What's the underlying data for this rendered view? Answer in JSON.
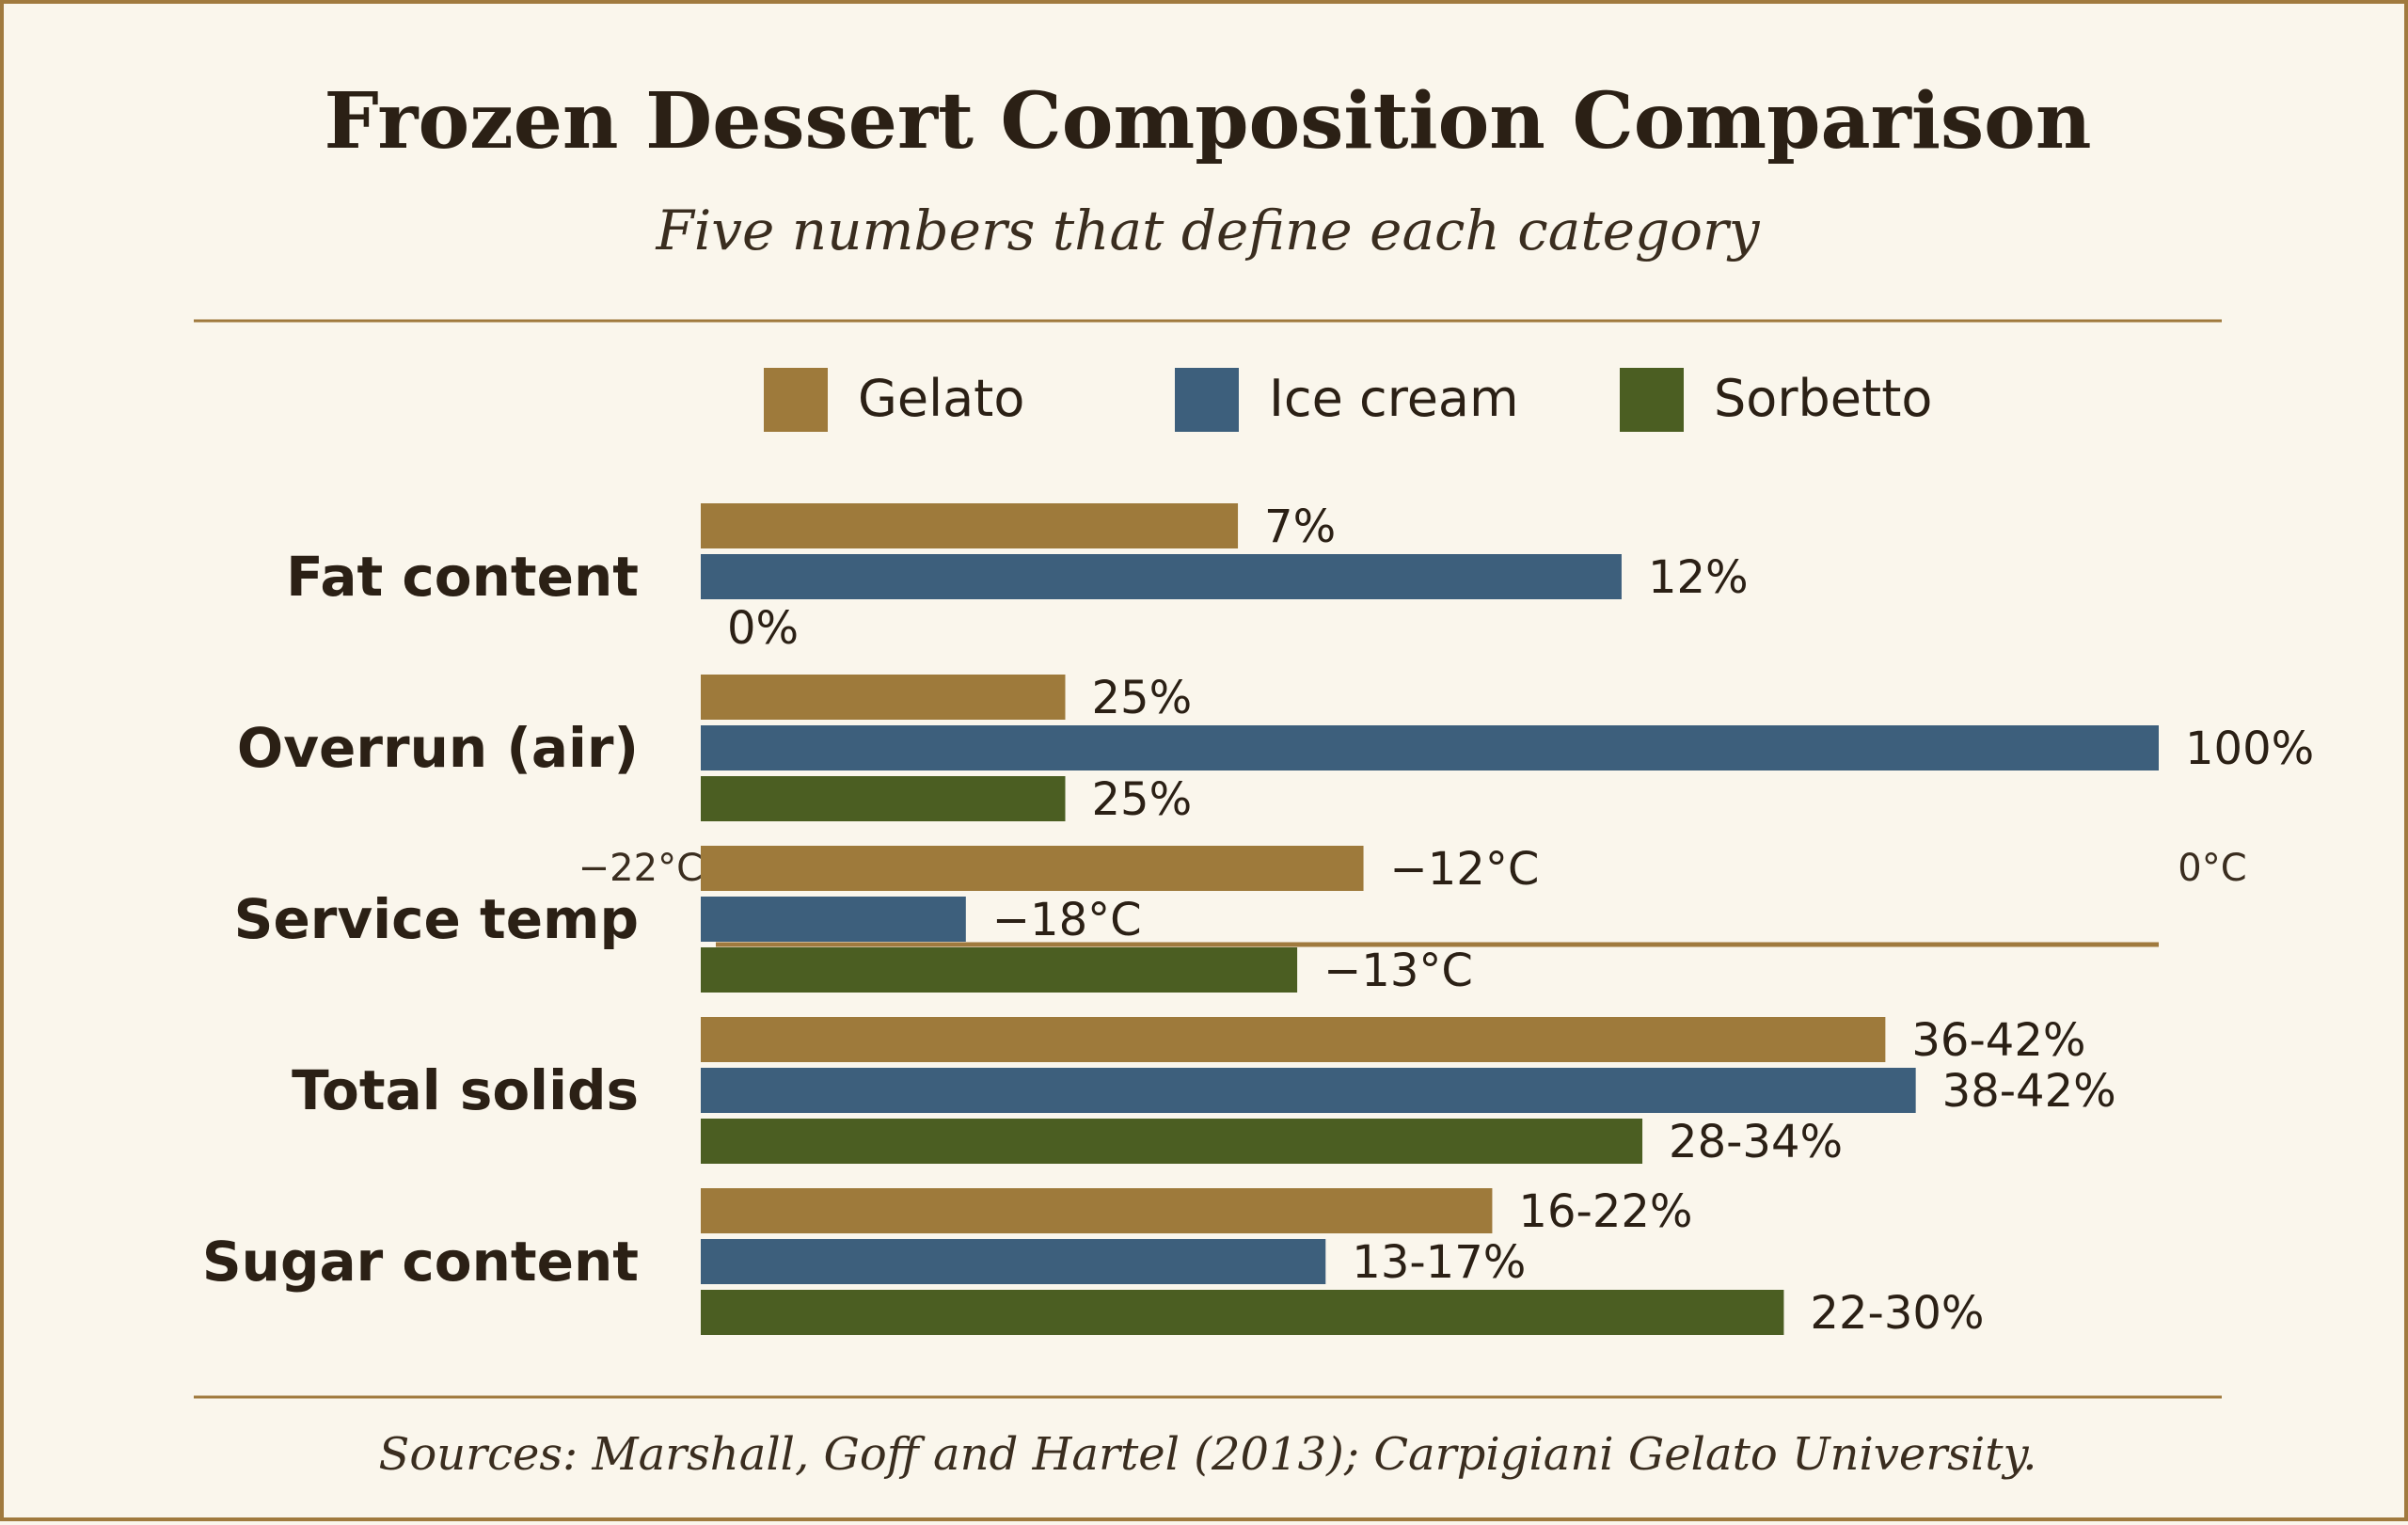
{
  "chart_data": {
    "type": "bar",
    "orientation": "horizontal",
    "title": "Frozen Dessert Composition Comparison",
    "subtitle": "Five numbers that define each category",
    "source": "Sources: Marshall, Goff and Hartel (2013); Carpigiani Gelato University.",
    "legend_position": "top",
    "grid": false,
    "series": [
      {
        "name": "Gelato",
        "color": "#9e7a3b"
      },
      {
        "name": "Ice cream",
        "color": "#3d5f7c"
      },
      {
        "name": "Sorbetto",
        "color": "#4b5e22"
      }
    ],
    "categories": [
      {
        "label": "Fat content",
        "unit": "%",
        "scale_max": 19,
        "values": [
          7,
          12,
          0
        ],
        "labels": [
          "7%",
          "12%",
          "0%"
        ]
      },
      {
        "label": "Overrun (air)",
        "unit": "%",
        "scale_max": 100,
        "values": [
          25,
          100,
          25
        ],
        "labels": [
          "25%",
          "100%",
          "25%"
        ]
      },
      {
        "label": "Service temp",
        "unit": "°C",
        "scale_min": -22,
        "scale_max": 0,
        "scale_min_label": "−22°C",
        "scale_max_label": "0°C",
        "values": [
          -12,
          -18,
          -13
        ],
        "labels": [
          "−12°C",
          "−18°C",
          "−13°C"
        ]
      },
      {
        "label": "Total solids",
        "unit": "%",
        "scale_max": 48,
        "values": [
          39,
          40,
          31
        ],
        "labels": [
          "36-42%",
          "38-42%",
          "28-34%"
        ]
      },
      {
        "label": "Sugar content",
        "unit": "%",
        "scale_max": 35,
        "values": [
          19,
          15,
          26
        ],
        "labels": [
          "16-22%",
          "13-17%",
          "22-30%"
        ]
      }
    ]
  },
  "colors": {
    "background": "#faf6ec",
    "border": "#a07a3e",
    "text": "#2b2015"
  }
}
